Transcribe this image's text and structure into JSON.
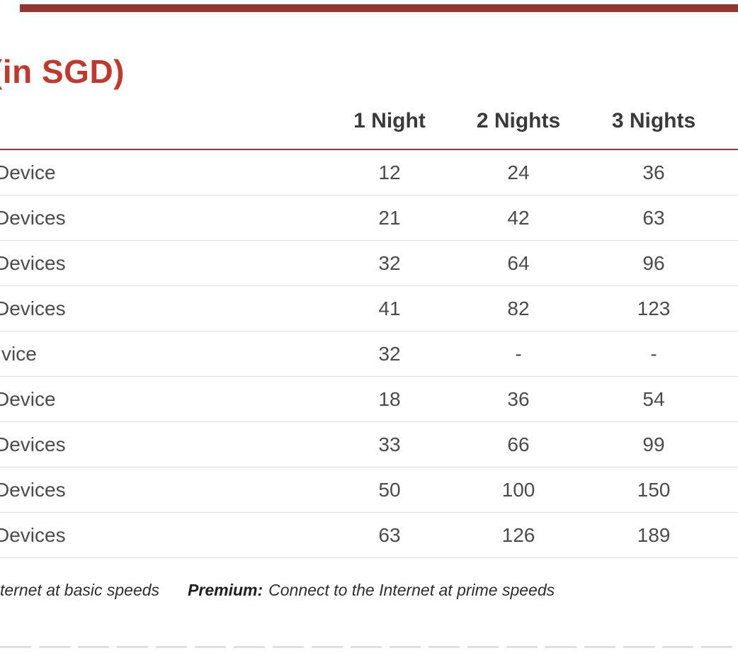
{
  "page": {
    "title": "(in SGD)",
    "accent_color": "#c0392e",
    "top_bar_color": "#93362f",
    "header_rule_color": "#8e3d39",
    "row_divider_color": "#dcdcdc"
  },
  "table": {
    "columns": [
      "1 Night",
      "2 Nights",
      "3 Nights"
    ],
    "rows": [
      {
        "label": "Device",
        "values": [
          "12",
          "24",
          "36"
        ]
      },
      {
        "label": "Devices",
        "values": [
          "21",
          "42",
          "63"
        ]
      },
      {
        "label": "Devices",
        "values": [
          "32",
          "64",
          "96"
        ]
      },
      {
        "label": "Devices",
        "values": [
          "41",
          "82",
          "123"
        ]
      },
      {
        "label": "vice",
        "values": [
          "32",
          "-",
          "-"
        ]
      },
      {
        "label": "Device",
        "values": [
          "18",
          "36",
          "54"
        ]
      },
      {
        "label": "Devices",
        "values": [
          "33",
          "66",
          "99"
        ]
      },
      {
        "label": "Devices",
        "values": [
          "50",
          "100",
          "150"
        ]
      },
      {
        "label": "Devices",
        "values": [
          "63",
          "126",
          "189"
        ]
      }
    ]
  },
  "footnote": {
    "basic_text": "ternet at basic speeds",
    "premium_label": "Premium:",
    "premium_text": "Connect to the Internet at prime speeds"
  }
}
